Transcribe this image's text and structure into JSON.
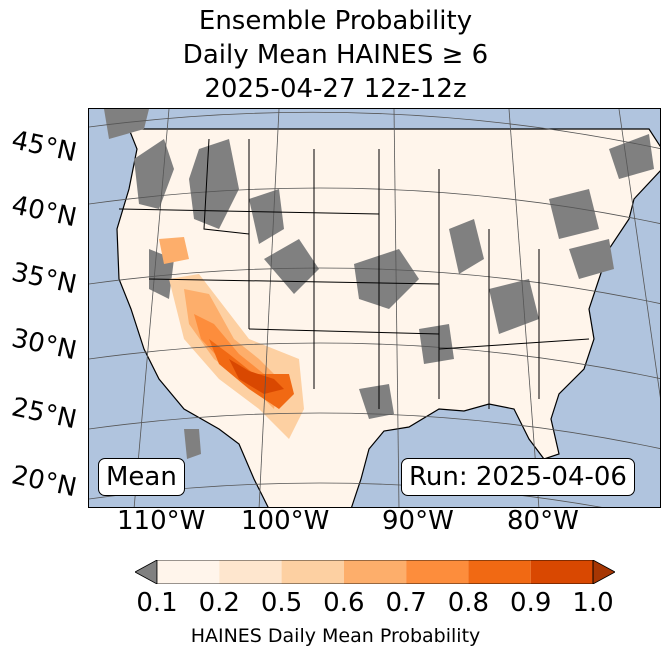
{
  "title": {
    "line1": "Ensemble Probability",
    "line2": "Daily Mean HAINES ≥ 6",
    "line3": "2025-04-27 12z-12z"
  },
  "map": {
    "latitude_labels": [
      "45°N",
      "40°N",
      "35°N",
      "30°N",
      "25°N",
      "20°N"
    ],
    "longitude_labels": [
      "110°W",
      "100°W",
      "90°W",
      "80°W"
    ],
    "stat_label": "Mean",
    "run_label": "Run: 2025-04-06",
    "colors": {
      "ocean": "#b0c4de",
      "no_data": "#808080",
      "low": "#fff5eb",
      "borders": "#000000"
    }
  },
  "colorbar": {
    "ticks": [
      "0.1",
      "0.2",
      "0.5",
      "0.6",
      "0.7",
      "0.8",
      "0.9",
      "1.0"
    ],
    "colors": [
      "#fff5eb",
      "#fee6ce",
      "#fdd0a2",
      "#fdae6b",
      "#fd8d3c",
      "#f16913",
      "#d94801",
      "#a63603"
    ],
    "under_color": "#808080",
    "label": "HAINES Daily Mean Probability"
  }
}
